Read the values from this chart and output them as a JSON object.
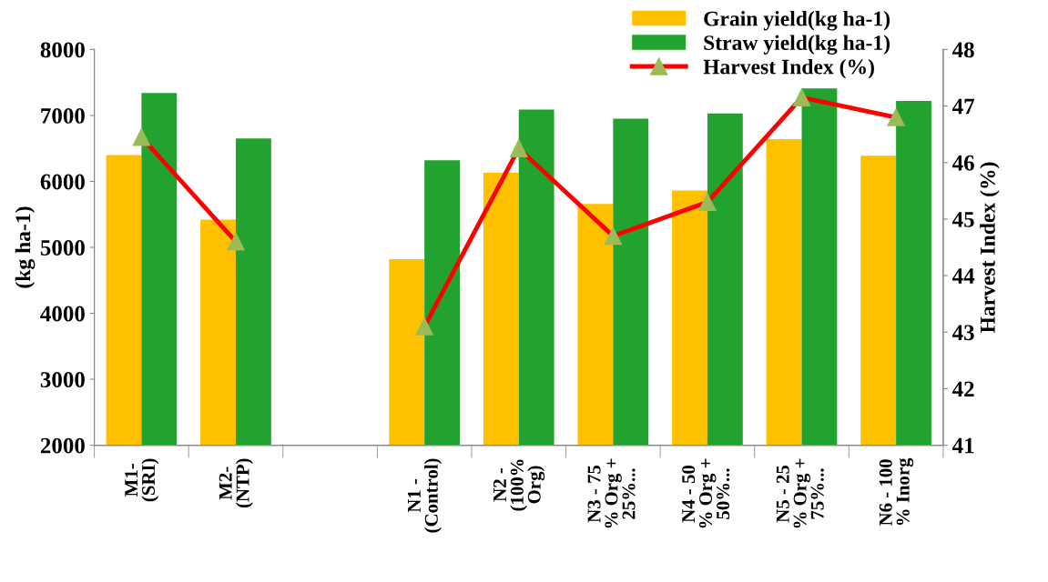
{
  "chart_data": {
    "type": "bar",
    "categories": [
      "M1-\n(SRI)",
      "M2-\n(NTP)",
      null,
      "N1 -\n(Control)",
      "N2 -\n(100%\nOrg)",
      "N3 - 75\n% Org +\n25%...",
      "N4 - 50\n% Org +\n50%...",
      "N5 - 25\n% Org +\n75%...",
      "N6 - 100\n% Inorg"
    ],
    "series": [
      {
        "name": "Grain yield(kg ha-1)",
        "color": "#ffc000",
        "values": [
          6400,
          5420,
          null,
          4820,
          6130,
          5660,
          5860,
          6640,
          6390
        ]
      },
      {
        "name": "Straw yield(kg ha-1)",
        "color": "#22a330",
        "values": [
          7340,
          6650,
          null,
          6320,
          7090,
          6950,
          7030,
          7410,
          7220
        ]
      },
      {
        "name": "Harvest Index (%)",
        "color": "#ff0000",
        "type": "line",
        "axis": "y2",
        "marker": "triangle",
        "values": [
          46.45,
          44.6,
          null,
          43.1,
          46.25,
          44.7,
          45.3,
          47.15,
          46.8
        ]
      }
    ],
    "ylabel": "(kg ha-1)",
    "y2label": "Harvest Index (%)",
    "ylim": [
      2000,
      8000
    ],
    "yticks": [
      2000,
      3000,
      4000,
      5000,
      6000,
      7000,
      8000
    ],
    "y2lim": [
      41,
      48
    ],
    "y2ticks": [
      41,
      42,
      43,
      44,
      45,
      46,
      47,
      48
    ],
    "grid": false,
    "legend": "top right"
  }
}
